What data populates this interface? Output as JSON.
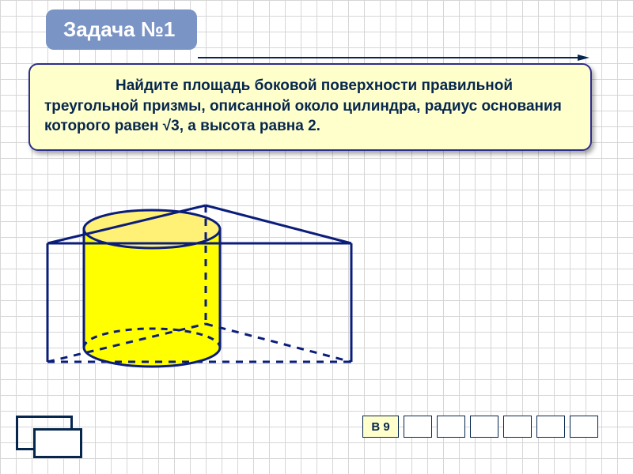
{
  "slide": {
    "background": "#ffffff",
    "grid_color": "#d6d6d6"
  },
  "title": {
    "text": "Задача №1",
    "bg": "#7a94c6",
    "color": "#ffffff",
    "fontsize": 26
  },
  "arrow": {
    "color": "#06264d"
  },
  "problem": {
    "text_lead": "Найдите площадь боковой поверхности",
    "text_rest": "правильной треугольной призмы, описанной около цилиндра, радиус основания которого равен √3, а высота равна 2.",
    "bg": "#ffffcc",
    "border": "#2e2e8c",
    "color": "#06264d",
    "fontsize": 19
  },
  "diagram": {
    "cylinder_fill": "#ffff00",
    "top_fill": "#fff176",
    "line_color": "#0b1d7a",
    "dash_color": "#0b1d7a",
    "line_width": 3
  },
  "answer": {
    "label": "В 9",
    "label_bg": "#ffffcc",
    "cell_bg": "#ffffff",
    "border": "#06264d",
    "count": 6,
    "fontsize": 15,
    "color": "#06264d"
  },
  "corner": {
    "border": "#06264d",
    "inner_bg": "#ffffff"
  }
}
